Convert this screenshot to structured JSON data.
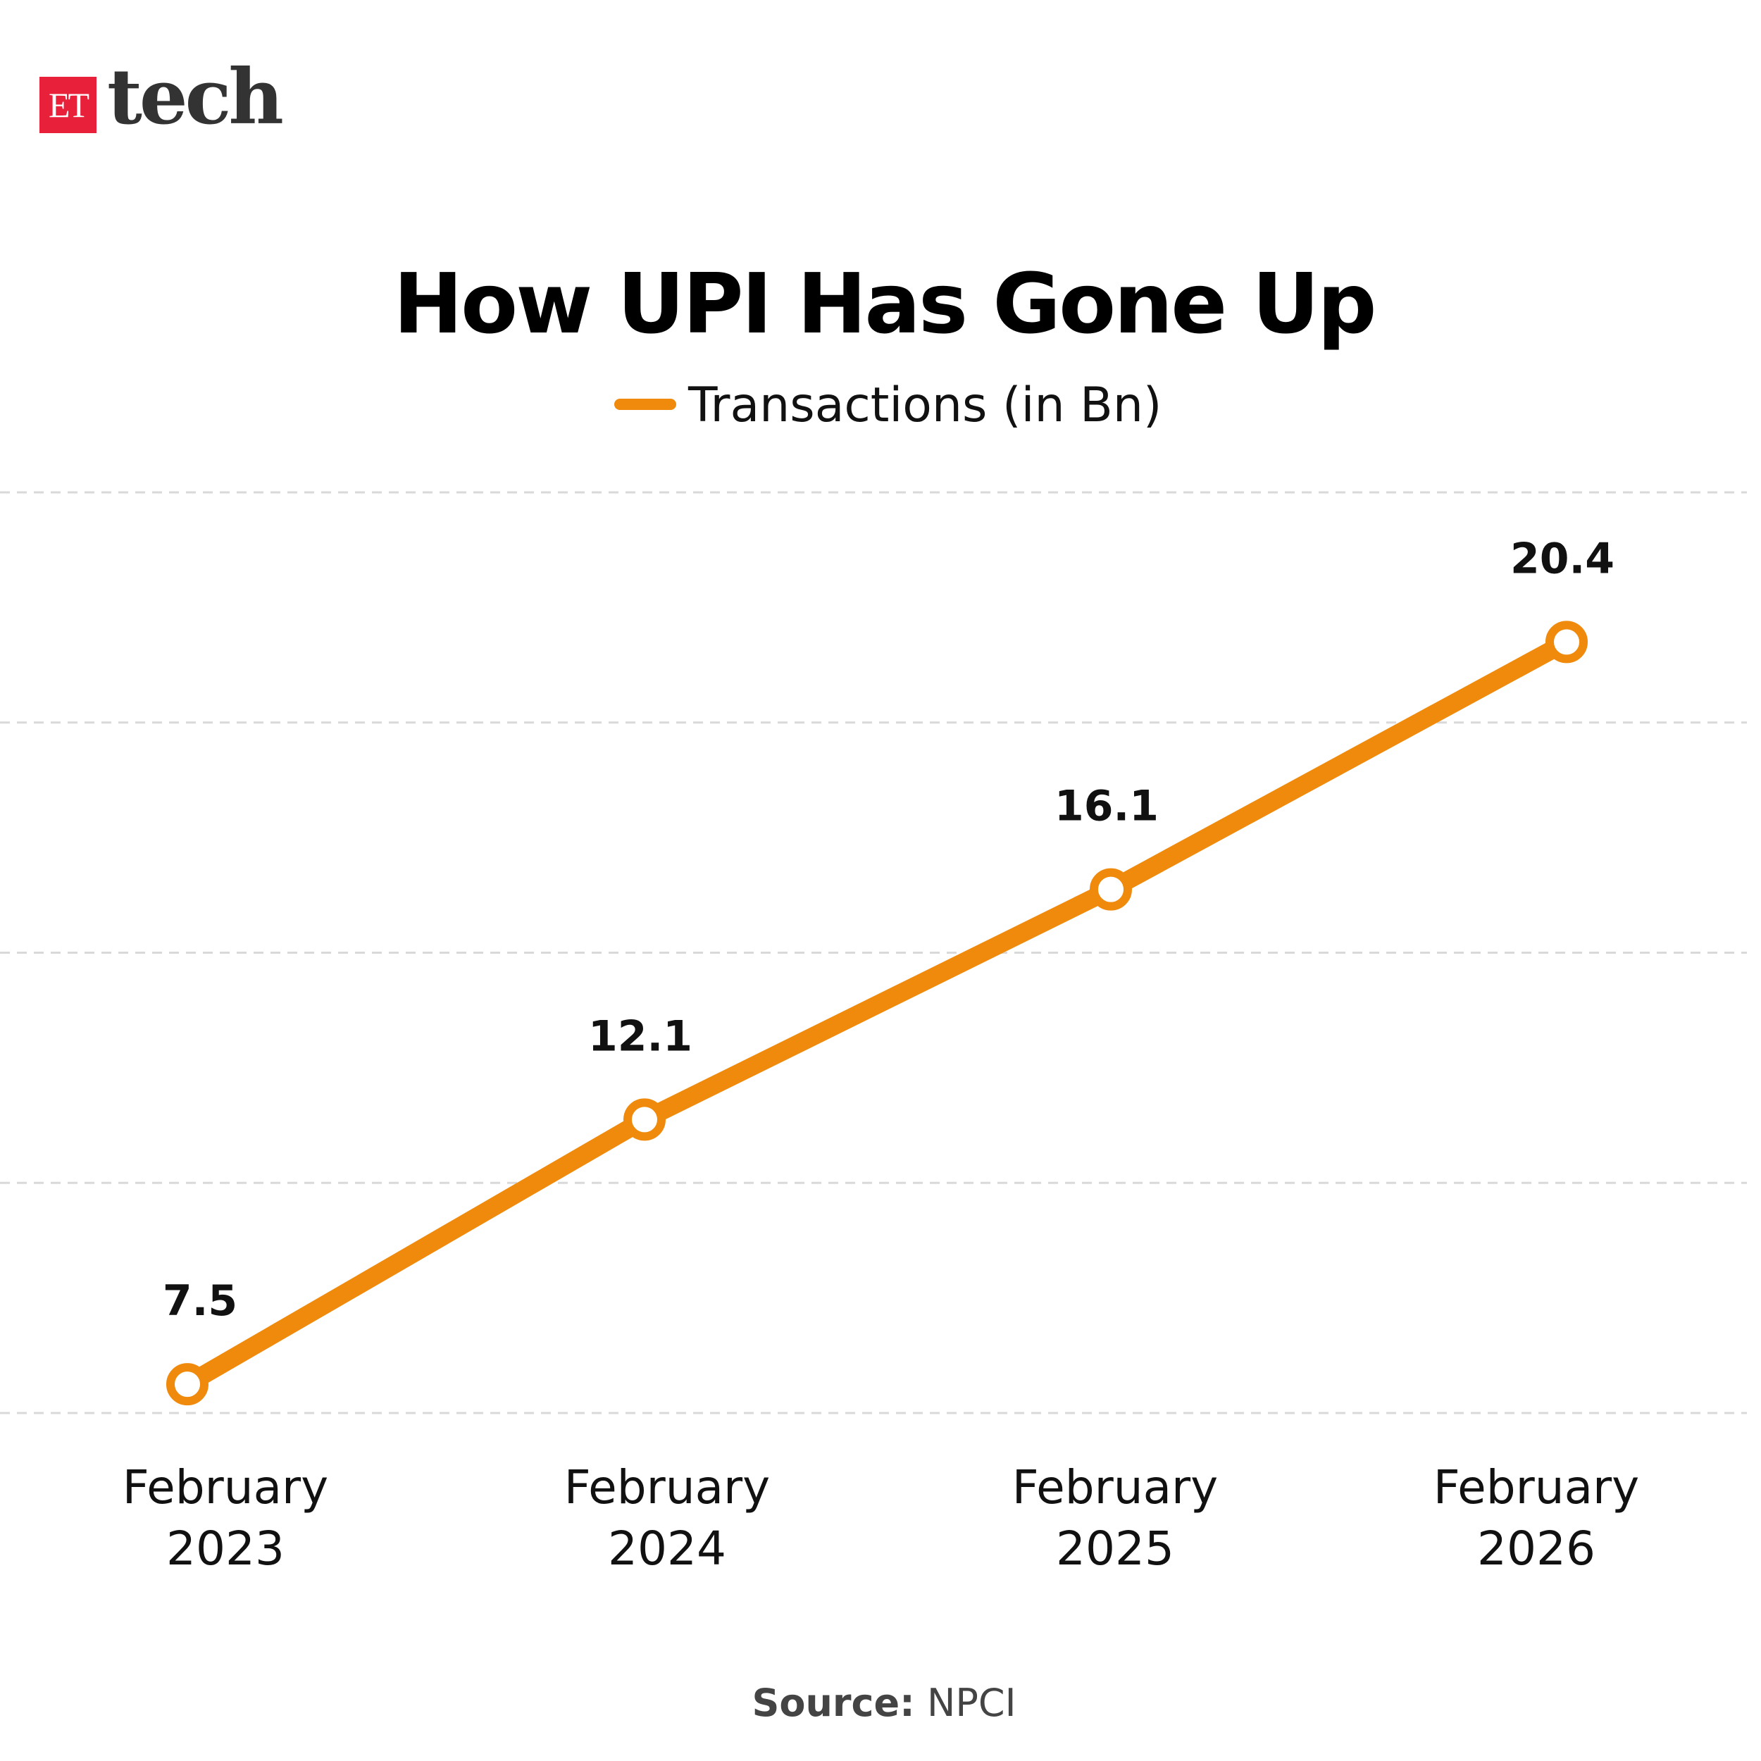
{
  "brand": {
    "box_text": "ET",
    "text": "tech",
    "box_color": "#e8203a"
  },
  "chart_data": {
    "type": "line",
    "title": "How UPI Has Gone Up",
    "categories": [
      [
        "February",
        "2023"
      ],
      [
        "February",
        "2024"
      ],
      [
        "February",
        "2025"
      ],
      [
        "February",
        "2026"
      ]
    ],
    "series": [
      {
        "name": "Transactions (in Bn)",
        "values": [
          7.5,
          12.1,
          16.1,
          20.4
        ],
        "color": "#ef8a0c"
      }
    ],
    "data_labels": [
      "7.5",
      "12.1",
      "16.1",
      "20.4"
    ],
    "gridlines": [
      7,
      11,
      15,
      19,
      23
    ],
    "grid": "horizontal dashed",
    "legend": "top-center",
    "ylim": [
      7,
      23
    ]
  },
  "source": {
    "label": "Source:",
    "value": "NPCI"
  }
}
